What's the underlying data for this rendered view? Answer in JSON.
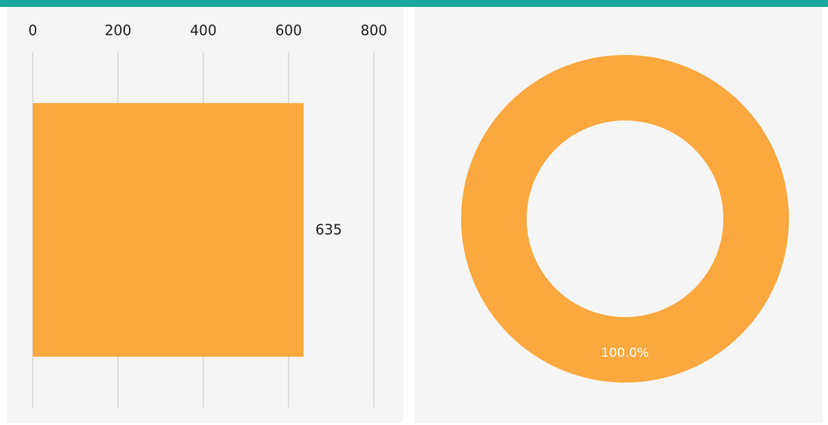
{
  "chart_data": [
    {
      "type": "bar",
      "orientation": "horizontal",
      "categories": [
        null
      ],
      "values": [
        635
      ],
      "color": "#fba83f",
      "xlim": [
        0,
        800
      ],
      "xticks": [
        0,
        200,
        400,
        600,
        800
      ],
      "grid": true
    },
    {
      "type": "pie",
      "donut": true,
      "categories": [
        null
      ],
      "values": [
        100
      ],
      "value_labels": [
        "100.0%"
      ],
      "colors": [
        "#fba83f"
      ]
    }
  ]
}
